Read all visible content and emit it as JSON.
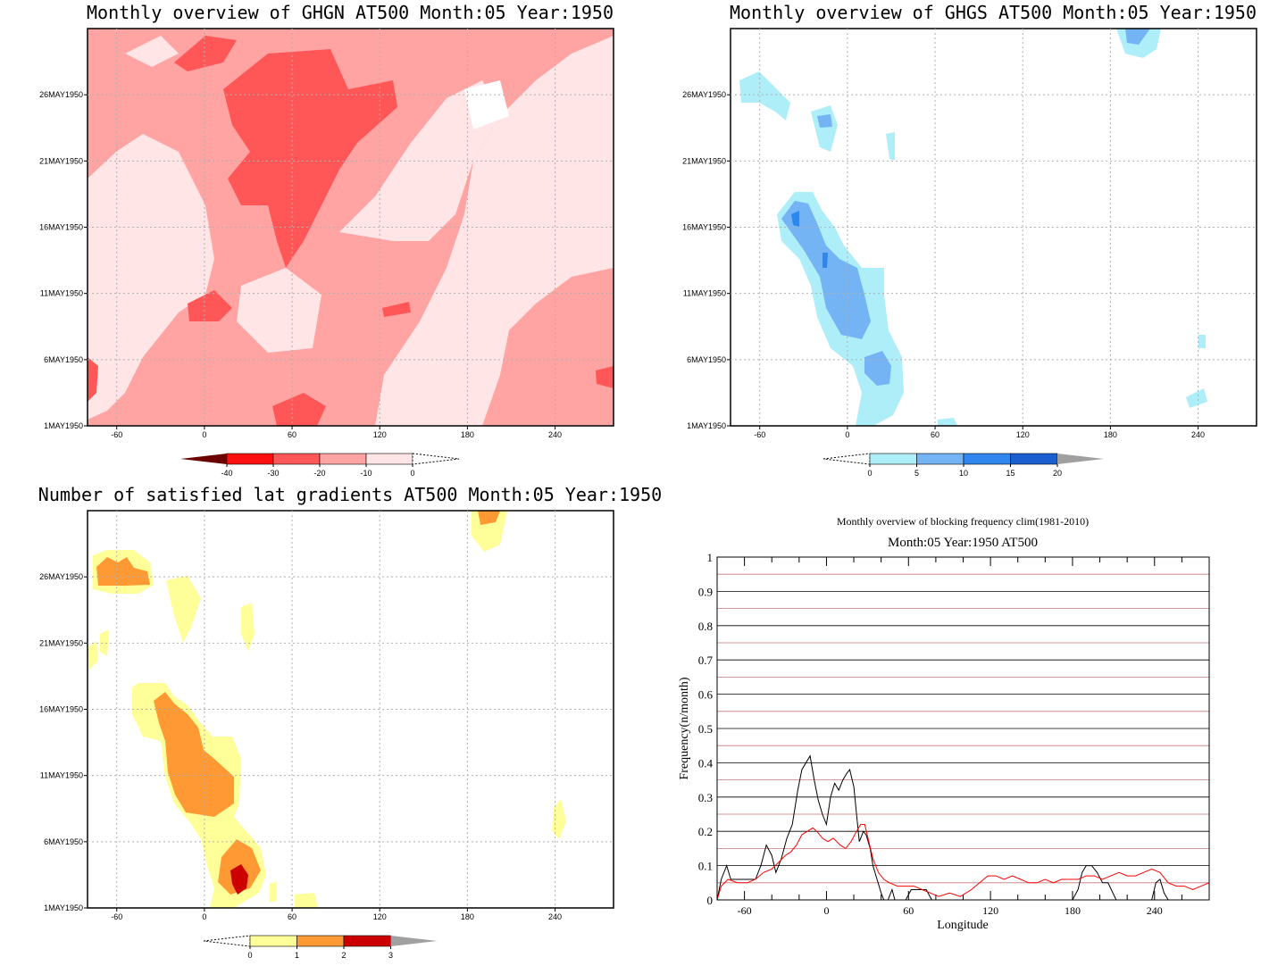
{
  "chart_data": [
    {
      "type": "heatmap",
      "title": "Monthly overview of GHGN AT500 Month:05 Year:1950",
      "x_ticks": [
        -60,
        0,
        60,
        120,
        180,
        240
      ],
      "y_ticks": [
        "1MAY1950",
        "6MAY1950",
        "11MAY1950",
        "16MAY1950",
        "21MAY1950",
        "26MAY1950"
      ],
      "xlim": [
        -80,
        280
      ],
      "ylim": [
        1,
        31
      ],
      "colorbar": {
        "labels": [
          "-40",
          "-30",
          "-20",
          "-10",
          "0"
        ],
        "colors": [
          "#6b0000",
          "#ff1010",
          "#ff5757",
          "#ffa3a3",
          "#ffe5e5"
        ]
      }
    },
    {
      "type": "heatmap",
      "title": "Monthly overview of GHGS AT500 Month:05 Year:1950",
      "x_ticks": [
        -60,
        0,
        60,
        120,
        180,
        240
      ],
      "y_ticks": [
        "1MAY1950",
        "6MAY1950",
        "11MAY1950",
        "16MAY1950",
        "21MAY1950",
        "26MAY1950"
      ],
      "xlim": [
        -80,
        280
      ],
      "ylim": [
        1,
        31
      ],
      "colorbar": {
        "labels": [
          "0",
          "5",
          "10",
          "15",
          "20"
        ],
        "colors": [
          "#aeeef8",
          "#74b4f4",
          "#2e86ee",
          "#1a5ed0",
          "#a0a0a0"
        ]
      }
    },
    {
      "type": "heatmap",
      "title": "Number of satisfied lat gradients AT500 Month:05 Year:1950",
      "x_ticks": [
        -60,
        0,
        60,
        120,
        180,
        240
      ],
      "y_ticks": [
        "1MAY1950",
        "6MAY1950",
        "11MAY1950",
        "16MAY1950",
        "21MAY1950",
        "26MAY1950"
      ],
      "xlim": [
        -80,
        280
      ],
      "ylim": [
        1,
        31
      ],
      "colorbar": {
        "labels": [
          "0",
          "1",
          "2",
          "3"
        ],
        "colors": [
          "#ffff99",
          "#ff9933",
          "#cc0000",
          "#a0a0a0"
        ]
      }
    },
    {
      "type": "line",
      "title": "Monthly overview of blocking frequency clim(1981-2010)",
      "subtitle": "Month:05 Year:1950  AT500",
      "xlabel": "Longitude",
      "ylabel": "Frequency(n/month)",
      "xlim": [
        -80,
        280
      ],
      "ylim": [
        0,
        1
      ],
      "x_ticks": [
        -60,
        0,
        60,
        120,
        180,
        240
      ],
      "y_ticks": [
        0,
        0.1,
        0.2,
        0.3,
        0.4,
        0.5,
        0.6,
        0.7,
        0.8,
        0.9,
        1
      ],
      "series": [
        {
          "color": "#000000",
          "points": [
            [
              -80,
              0
            ],
            [
              -77,
              0.06
            ],
            [
              -73,
              0.1
            ],
            [
              -70,
              0.06
            ],
            [
              -65,
              0.06
            ],
            [
              -58,
              0.06
            ],
            [
              -52,
              0.06
            ],
            [
              -48,
              0.1
            ],
            [
              -44,
              0.16
            ],
            [
              -40,
              0.13
            ],
            [
              -37,
              0.08
            ],
            [
              -33,
              0.12
            ],
            [
              -29,
              0.18
            ],
            [
              -25,
              0.22
            ],
            [
              -21,
              0.32
            ],
            [
              -18,
              0.38
            ],
            [
              -15,
              0.4
            ],
            [
              -12,
              0.42
            ],
            [
              -9,
              0.35
            ],
            [
              -6,
              0.29
            ],
            [
              -3,
              0.25
            ],
            [
              0,
              0.22
            ],
            [
              3,
              0.3
            ],
            [
              6,
              0.34
            ],
            [
              9,
              0.32
            ],
            [
              12,
              0.35
            ],
            [
              15,
              0.37
            ],
            [
              17,
              0.38
            ],
            [
              20,
              0.33
            ],
            [
              22,
              0.25
            ],
            [
              24,
              0.17
            ],
            [
              27,
              0.2
            ],
            [
              29,
              0.19
            ],
            [
              32,
              0.15
            ],
            [
              34,
              0.1
            ],
            [
              37,
              0.06
            ],
            [
              40,
              0.02
            ],
            [
              42,
              0
            ],
            [
              45,
              0
            ],
            [
              48,
              0.03
            ],
            [
              50,
              0
            ],
            [
              58,
              0
            ],
            [
              62,
              0.03
            ],
            [
              68,
              0.03
            ],
            [
              73,
              0.03
            ],
            [
              77,
              0
            ],
            [
              180,
              0
            ],
            [
              184,
              0.03
            ],
            [
              187,
              0.08
            ],
            [
              190,
              0.1
            ],
            [
              194,
              0.1
            ],
            [
              198,
              0.08
            ],
            [
              202,
              0.05
            ],
            [
              206,
              0.05
            ],
            [
              212,
              0
            ],
            [
              238,
              0
            ],
            [
              241,
              0.05
            ],
            [
              244,
              0.06
            ],
            [
              247,
              0.02
            ],
            [
              250,
              0
            ],
            [
              280,
              0
            ]
          ]
        },
        {
          "color": "#ff0000",
          "points": [
            [
              -80,
              0
            ],
            [
              -77,
              0.04
            ],
            [
              -72,
              0.06
            ],
            [
              -65,
              0.05
            ],
            [
              -58,
              0.05
            ],
            [
              -52,
              0.06
            ],
            [
              -46,
              0.08
            ],
            [
              -40,
              0.09
            ],
            [
              -35,
              0.11
            ],
            [
              -30,
              0.13
            ],
            [
              -26,
              0.14
            ],
            [
              -22,
              0.16
            ],
            [
              -18,
              0.19
            ],
            [
              -14,
              0.2
            ],
            [
              -10,
              0.21
            ],
            [
              -7,
              0.2
            ],
            [
              -3,
              0.18
            ],
            [
              1,
              0.17
            ],
            [
              5,
              0.18
            ],
            [
              10,
              0.16
            ],
            [
              14,
              0.15
            ],
            [
              18,
              0.17
            ],
            [
              22,
              0.2
            ],
            [
              25,
              0.22
            ],
            [
              28,
              0.22
            ],
            [
              31,
              0.17
            ],
            [
              34,
              0.12
            ],
            [
              38,
              0.08
            ],
            [
              42,
              0.06
            ],
            [
              46,
              0.05
            ],
            [
              52,
              0.04
            ],
            [
              58,
              0.04
            ],
            [
              64,
              0.04
            ],
            [
              70,
              0.03
            ],
            [
              76,
              0.02
            ],
            [
              82,
              0.01
            ],
            [
              90,
              0.02
            ],
            [
              98,
              0.01
            ],
            [
              106,
              0.03
            ],
            [
              112,
              0.05
            ],
            [
              118,
              0.07
            ],
            [
              124,
              0.07
            ],
            [
              130,
              0.06
            ],
            [
              136,
              0.07
            ],
            [
              142,
              0.06
            ],
            [
              148,
              0.05
            ],
            [
              154,
              0.05
            ],
            [
              160,
              0.06
            ],
            [
              166,
              0.05
            ],
            [
              172,
              0.06
            ],
            [
              178,
              0.06
            ],
            [
              184,
              0.06
            ],
            [
              190,
              0.07
            ],
            [
              196,
              0.07
            ],
            [
              202,
              0.06
            ],
            [
              208,
              0.07
            ],
            [
              214,
              0.08
            ],
            [
              220,
              0.07
            ],
            [
              226,
              0.07
            ],
            [
              232,
              0.08
            ],
            [
              238,
              0.09
            ],
            [
              244,
              0.08
            ],
            [
              250,
              0.05
            ],
            [
              256,
              0.04
            ],
            [
              262,
              0.04
            ],
            [
              268,
              0.03
            ],
            [
              274,
              0.04
            ],
            [
              280,
              0.05
            ]
          ]
        }
      ]
    }
  ]
}
